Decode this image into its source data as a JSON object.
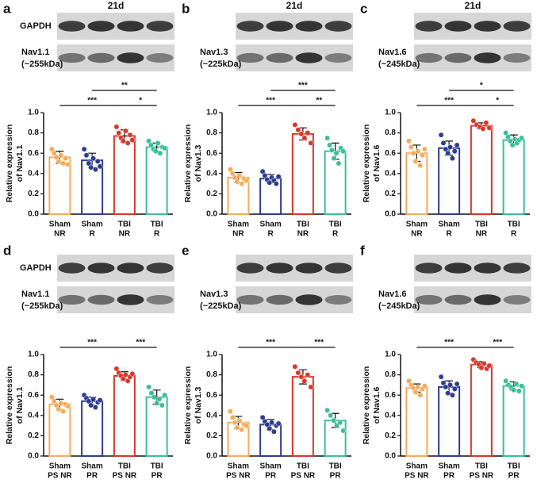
{
  "chart_data": [
    {
      "type": "bar",
      "label": "a",
      "time": "21d",
      "blots": [
        "GAPDH",
        [
          "Nav1.1",
          "(~255kDa)"
        ]
      ],
      "ylabel": [
        "Relative expression",
        "of Nav1.1"
      ],
      "categories": [
        [
          "Sham",
          "NR"
        ],
        [
          "Sham",
          "R"
        ],
        [
          "TBI",
          "NR"
        ],
        [
          "TBI",
          "R"
        ]
      ],
      "values": [
        0.56,
        0.53,
        0.77,
        0.66
      ],
      "errors": [
        0.06,
        0.07,
        0.06,
        0.04
      ],
      "points": [
        [
          0.64,
          0.6,
          0.56,
          0.52,
          0.58,
          0.5,
          0.55,
          0.49
        ],
        [
          0.64,
          0.58,
          0.5,
          0.46,
          0.55,
          0.44,
          0.52,
          0.47
        ],
        [
          0.86,
          0.8,
          0.75,
          0.72,
          0.82,
          0.7,
          0.78,
          0.73
        ],
        [
          0.72,
          0.68,
          0.64,
          0.62,
          0.7,
          0.6,
          0.66,
          0.65
        ]
      ],
      "colors": [
        "#f4ac5c",
        "#2e3c92",
        "#d8382a",
        "#3bbf98"
      ],
      "ylim": [
        0,
        1.0
      ],
      "yticks": [
        {
          "value": 0,
          "label": "0.0"
        },
        {
          "value": 0.2,
          "label": "0.2"
        },
        {
          "value": 0.4,
          "label": "0.4"
        },
        {
          "value": 0.6,
          "label": "0.6"
        },
        {
          "value": 0.8,
          "label": "0.8"
        },
        {
          "value": 1.0,
          "label": "1.0"
        }
      ],
      "significance": [
        {
          "pair": [
            0,
            2
          ],
          "label": "***"
        },
        {
          "pair": [
            1,
            3
          ],
          "label": "**"
        },
        {
          "pair": [
            2,
            3
          ],
          "label": "*"
        }
      ]
    },
    {
      "type": "bar",
      "label": "b",
      "time": "21d",
      "blots": [
        null,
        [
          "Nav1.3",
          "(~225kDa)"
        ]
      ],
      "ylabel": [
        "Relative expression",
        "of Nav1.3"
      ],
      "categories": [
        [
          "Sham",
          "NR"
        ],
        [
          "Sham",
          "R"
        ],
        [
          "TBI",
          "NR"
        ],
        [
          "TBI",
          "R"
        ]
      ],
      "values": [
        0.36,
        0.35,
        0.79,
        0.62
      ],
      "errors": [
        0.05,
        0.04,
        0.06,
        0.08
      ],
      "points": [
        [
          0.44,
          0.4,
          0.36,
          0.32,
          0.38,
          0.3,
          0.35,
          0.33
        ],
        [
          0.42,
          0.38,
          0.34,
          0.31,
          0.36,
          0.33,
          0.3,
          0.37
        ],
        [
          0.88,
          0.83,
          0.79,
          0.75,
          0.8,
          0.7
        ],
        [
          0.75,
          0.68,
          0.63,
          0.55,
          0.6,
          0.5,
          0.65,
          0.62
        ]
      ],
      "colors": [
        "#f4ac5c",
        "#2e3c92",
        "#d8382a",
        "#3bbf98"
      ],
      "ylim": [
        0,
        1.0
      ],
      "yticks": [
        {
          "value": 0,
          "label": "0.0"
        },
        {
          "value": 0.2,
          "label": "0.2"
        },
        {
          "value": 0.4,
          "label": "0.4"
        },
        {
          "value": 0.6,
          "label": "0.6"
        },
        {
          "value": 0.8,
          "label": "0.8"
        },
        {
          "value": 1.0,
          "label": "1.0"
        }
      ],
      "significance": [
        {
          "pair": [
            0,
            2
          ],
          "label": "***"
        },
        {
          "pair": [
            1,
            3
          ],
          "label": "***"
        },
        {
          "pair": [
            2,
            3
          ],
          "label": "**"
        }
      ]
    },
    {
      "type": "bar",
      "label": "c",
      "time": "21d",
      "blots": [
        null,
        [
          "Nav1.6",
          "(~245kDa)"
        ]
      ],
      "ylabel": [
        "Relative expression",
        "of Nav1.6"
      ],
      "categories": [
        [
          "Sham",
          "NR"
        ],
        [
          "Sham",
          "R"
        ],
        [
          "TBI",
          "NR"
        ],
        [
          "TBI",
          "R"
        ]
      ],
      "values": [
        0.6,
        0.65,
        0.87,
        0.73
      ],
      "errors": [
        0.08,
        0.07,
        0.03,
        0.05
      ],
      "points": [
        [
          0.72,
          0.66,
          0.6,
          0.52,
          0.62,
          0.48,
          0.58,
          0.64
        ],
        [
          0.78,
          0.7,
          0.64,
          0.6,
          0.66,
          0.55,
          0.62,
          0.68
        ],
        [
          0.92,
          0.88,
          0.86,
          0.84,
          0.9,
          0.85
        ],
        [
          0.8,
          0.76,
          0.72,
          0.68,
          0.74,
          0.7,
          0.73,
          0.75
        ]
      ],
      "colors": [
        "#f4ac5c",
        "#2e3c92",
        "#d8382a",
        "#3bbf98"
      ],
      "ylim": [
        0,
        1.0
      ],
      "yticks": [
        {
          "value": 0,
          "label": "0.0"
        },
        {
          "value": 0.2,
          "label": "0.2"
        },
        {
          "value": 0.4,
          "label": "0.4"
        },
        {
          "value": 0.6,
          "label": "0.6"
        },
        {
          "value": 0.8,
          "label": "0.8"
        },
        {
          "value": 1.0,
          "label": "1.0"
        }
      ],
      "significance": [
        {
          "pair": [
            0,
            2
          ],
          "label": "***"
        },
        {
          "pair": [
            1,
            3
          ],
          "label": "*"
        },
        {
          "pair": [
            2,
            3
          ],
          "label": "*"
        }
      ]
    },
    {
      "type": "bar",
      "label": "d",
      "blots": [
        "GAPDH",
        [
          "Nav1.1",
          "(~255kDa)"
        ]
      ],
      "ylabel": [
        "Relative expression",
        "of Nav1.1"
      ],
      "categories": [
        [
          "Sham",
          "PS NR"
        ],
        [
          "Sham",
          "PR"
        ],
        [
          "TBI",
          "PS NR"
        ],
        [
          "TBI",
          "PR"
        ]
      ],
      "values": [
        0.51,
        0.54,
        0.79,
        0.58
      ],
      "errors": [
        0.05,
        0.04,
        0.04,
        0.07
      ],
      "points": [
        [
          0.58,
          0.54,
          0.5,
          0.46,
          0.52,
          0.44,
          0.51,
          0.49
        ],
        [
          0.6,
          0.57,
          0.54,
          0.5,
          0.56,
          0.48,
          0.53,
          0.55
        ],
        [
          0.86,
          0.82,
          0.79,
          0.76,
          0.8,
          0.74,
          0.78,
          0.81
        ],
        [
          0.68,
          0.62,
          0.58,
          0.52,
          0.56,
          0.5,
          0.6
        ]
      ],
      "colors": [
        "#f4ac5c",
        "#2e3c92",
        "#d8382a",
        "#3bbf98"
      ],
      "ylim": [
        0,
        1.0
      ],
      "yticks": [
        {
          "value": 0,
          "label": "0.0"
        },
        {
          "value": 0.2,
          "label": "0.2"
        },
        {
          "value": 0.4,
          "label": "0.4"
        },
        {
          "value": 0.6,
          "label": "0.6"
        },
        {
          "value": 0.8,
          "label": "0.8"
        },
        {
          "value": 1.0,
          "label": "1.0"
        }
      ],
      "significance": [
        {
          "pair": [
            0,
            2
          ],
          "label": "***"
        },
        {
          "pair": [
            2,
            3
          ],
          "label": "***"
        }
      ]
    },
    {
      "type": "bar",
      "label": "e",
      "blots": [
        null,
        [
          "Nav1.3",
          "(~225kDa)"
        ]
      ],
      "ylabel": [
        "Relative expression",
        "of Nav1.3"
      ],
      "categories": [
        [
          "Sham",
          "PS NR"
        ],
        [
          "Sham",
          "PR"
        ],
        [
          "TBI",
          "PS NR"
        ],
        [
          "TBI",
          "PR"
        ]
      ],
      "values": [
        0.33,
        0.31,
        0.78,
        0.35
      ],
      "errors": [
        0.06,
        0.05,
        0.07,
        0.07
      ],
      "points": [
        [
          0.44,
          0.38,
          0.33,
          0.28,
          0.35,
          0.26,
          0.31,
          0.3
        ],
        [
          0.38,
          0.34,
          0.31,
          0.27,
          0.33,
          0.24,
          0.3,
          0.32
        ],
        [
          0.88,
          0.82,
          0.78,
          0.74,
          0.8,
          0.68
        ],
        [
          0.45,
          0.4,
          0.35,
          0.3,
          0.33,
          0.25
        ]
      ],
      "colors": [
        "#f4ac5c",
        "#2e3c92",
        "#d8382a",
        "#3bbf98"
      ],
      "ylim": [
        0,
        1.0
      ],
      "yticks": [
        {
          "value": 0,
          "label": "0.0"
        },
        {
          "value": 0.2,
          "label": "0.2"
        },
        {
          "value": 0.4,
          "label": "0.4"
        },
        {
          "value": 0.6,
          "label": "0.6"
        },
        {
          "value": 0.8,
          "label": "0.8"
        },
        {
          "value": 1.0,
          "label": "1.0"
        }
      ],
      "significance": [
        {
          "pair": [
            0,
            2
          ],
          "label": "***"
        },
        {
          "pair": [
            2,
            3
          ],
          "label": "***"
        }
      ]
    },
    {
      "type": "bar",
      "label": "f",
      "blots": [
        null,
        [
          "Nav1.6",
          "(~245kDa)"
        ]
      ],
      "ylabel": [
        "Relative expression",
        "of Nav1.6"
      ],
      "categories": [
        [
          "Sham",
          "PS NR"
        ],
        [
          "Sham",
          "PR"
        ],
        [
          "TBI",
          "PS NR"
        ],
        [
          "TBI",
          "PR"
        ]
      ],
      "values": [
        0.67,
        0.68,
        0.9,
        0.69
      ],
      "errors": [
        0.04,
        0.06,
        0.03,
        0.04
      ],
      "points": [
        [
          0.74,
          0.7,
          0.67,
          0.63,
          0.68,
          0.6,
          0.66,
          0.69
        ],
        [
          0.78,
          0.72,
          0.68,
          0.62,
          0.7,
          0.6,
          0.66,
          0.71
        ],
        [
          0.95,
          0.92,
          0.9,
          0.87,
          0.91,
          0.86,
          0.89
        ],
        [
          0.74,
          0.7,
          0.68,
          0.65,
          0.71,
          0.64,
          0.69
        ]
      ],
      "colors": [
        "#f4ac5c",
        "#2e3c92",
        "#d8382a",
        "#3bbf98"
      ],
      "ylim": [
        0,
        1.0
      ],
      "yticks": [
        {
          "value": 0,
          "label": "0.0"
        },
        {
          "value": 0.2,
          "label": "0.2"
        },
        {
          "value": 0.4,
          "label": "0.4"
        },
        {
          "value": 0.6,
          "label": "0.6"
        },
        {
          "value": 0.8,
          "label": "0.8"
        },
        {
          "value": 1.0,
          "label": "1.0"
        }
      ],
      "significance": [
        {
          "pair": [
            0,
            2
          ],
          "label": "***"
        },
        {
          "pair": [
            2,
            3
          ],
          "label": "***"
        }
      ]
    }
  ]
}
